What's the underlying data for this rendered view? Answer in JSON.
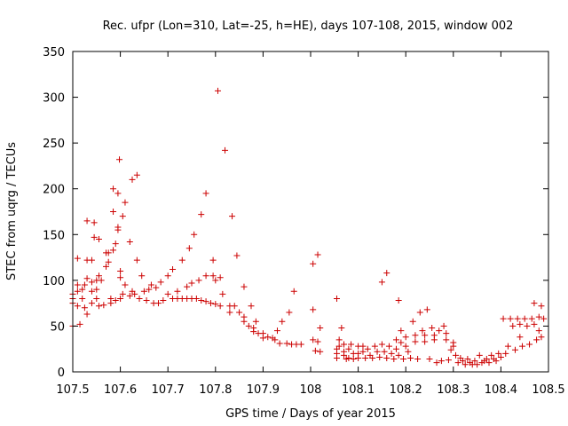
{
  "chart_data": {
    "type": "scatter",
    "title": "Rec. ufpr (Lon=310, Lat=-25, h=HE), days 107-108, 2015, window 002",
    "xlabel": "GPS time / Days of year 2015",
    "ylabel": "STEC from uqrg / TECUs",
    "xlim": [
      107.5,
      108.5
    ],
    "ylim": [
      0,
      350
    ],
    "x_ticks": [
      "107.5",
      "107.6",
      "107.7",
      "107.8",
      "107.9",
      "108",
      "108.1",
      "108.2",
      "108.3",
      "108.4",
      "108.5"
    ],
    "y_ticks": [
      "0",
      "50",
      "100",
      "150",
      "200",
      "250",
      "300",
      "350"
    ],
    "grid": false,
    "legend": "none",
    "marker": "plus",
    "color": "#cc0000",
    "points": [
      [
        107.5,
        75
      ],
      [
        107.5,
        80
      ],
      [
        107.5,
        85
      ],
      [
        107.5,
        50
      ],
      [
        107.51,
        72
      ],
      [
        107.51,
        88
      ],
      [
        107.51,
        95
      ],
      [
        107.51,
        124
      ],
      [
        107.515,
        52
      ],
      [
        107.52,
        80
      ],
      [
        107.52,
        90
      ],
      [
        107.525,
        70
      ],
      [
        107.525,
        95
      ],
      [
        107.53,
        63
      ],
      [
        107.53,
        102
      ],
      [
        107.53,
        122
      ],
      [
        107.53,
        165
      ],
      [
        107.54,
        75
      ],
      [
        107.54,
        88
      ],
      [
        107.54,
        98
      ],
      [
        107.54,
        122
      ],
      [
        107.545,
        147
      ],
      [
        107.545,
        163
      ],
      [
        107.55,
        80
      ],
      [
        107.55,
        90
      ],
      [
        107.55,
        100
      ],
      [
        107.555,
        72
      ],
      [
        107.555,
        105
      ],
      [
        107.555,
        145
      ],
      [
        107.56,
        100
      ],
      [
        107.565,
        73
      ],
      [
        107.57,
        115
      ],
      [
        107.57,
        130
      ],
      [
        107.575,
        120
      ],
      [
        107.575,
        130
      ],
      [
        107.58,
        75
      ],
      [
        107.58,
        80
      ],
      [
        107.585,
        133
      ],
      [
        107.585,
        175
      ],
      [
        107.585,
        200
      ],
      [
        107.59,
        140
      ],
      [
        107.59,
        78
      ],
      [
        107.595,
        195
      ],
      [
        107.595,
        158
      ],
      [
        107.595,
        155
      ],
      [
        107.598,
        232
      ],
      [
        107.6,
        110
      ],
      [
        107.6,
        103
      ],
      [
        107.6,
        80
      ],
      [
        107.605,
        85
      ],
      [
        107.605,
        170
      ],
      [
        107.61,
        185
      ],
      [
        107.61,
        95
      ],
      [
        107.62,
        83
      ],
      [
        107.62,
        142
      ],
      [
        107.625,
        210
      ],
      [
        107.625,
        88
      ],
      [
        107.63,
        85
      ],
      [
        107.635,
        215
      ],
      [
        107.635,
        122
      ],
      [
        107.64,
        80
      ],
      [
        107.645,
        105
      ],
      [
        107.65,
        88
      ],
      [
        107.655,
        78
      ],
      [
        107.66,
        90
      ],
      [
        107.665,
        95
      ],
      [
        107.67,
        75
      ],
      [
        107.675,
        92
      ],
      [
        107.68,
        75
      ],
      [
        107.685,
        98
      ],
      [
        107.69,
        78
      ],
      [
        107.7,
        85
      ],
      [
        107.7,
        105
      ],
      [
        107.71,
        80
      ],
      [
        107.71,
        112
      ],
      [
        107.72,
        88
      ],
      [
        107.72,
        80
      ],
      [
        107.73,
        80
      ],
      [
        107.73,
        122
      ],
      [
        107.74,
        80
      ],
      [
        107.74,
        93
      ],
      [
        107.745,
        135
      ],
      [
        107.75,
        80
      ],
      [
        107.75,
        97
      ],
      [
        107.755,
        150
      ],
      [
        107.76,
        80
      ],
      [
        107.765,
        100
      ],
      [
        107.77,
        78
      ],
      [
        107.77,
        172
      ],
      [
        107.78,
        105
      ],
      [
        107.78,
        77
      ],
      [
        107.78,
        195
      ],
      [
        107.79,
        75
      ],
      [
        107.795,
        122
      ],
      [
        107.795,
        105
      ],
      [
        107.8,
        100
      ],
      [
        107.8,
        74
      ],
      [
        107.805,
        307
      ],
      [
        107.81,
        72
      ],
      [
        107.81,
        103
      ],
      [
        107.815,
        85
      ],
      [
        107.82,
        242
      ],
      [
        107.83,
        72
      ],
      [
        107.83,
        65
      ],
      [
        107.835,
        170
      ],
      [
        107.84,
        72
      ],
      [
        107.845,
        127
      ],
      [
        107.85,
        65
      ],
      [
        107.86,
        60
      ],
      [
        107.86,
        55
      ],
      [
        107.86,
        93
      ],
      [
        107.87,
        50
      ],
      [
        107.875,
        72
      ],
      [
        107.88,
        48
      ],
      [
        107.88,
        44
      ],
      [
        107.885,
        55
      ],
      [
        107.89,
        42
      ],
      [
        107.9,
        42
      ],
      [
        107.9,
        37
      ],
      [
        107.91,
        38
      ],
      [
        107.92,
        37
      ],
      [
        107.925,
        35
      ],
      [
        107.93,
        45
      ],
      [
        107.935,
        31
      ],
      [
        107.94,
        55
      ],
      [
        107.95,
        31
      ],
      [
        107.955,
        65
      ],
      [
        107.96,
        30
      ],
      [
        107.965,
        88
      ],
      [
        107.97,
        30
      ],
      [
        107.98,
        30
      ],
      [
        108.005,
        68
      ],
      [
        108.005,
        35
      ],
      [
        108.005,
        118
      ],
      [
        108.01,
        23
      ],
      [
        108.015,
        33
      ],
      [
        108.015,
        128
      ],
      [
        108.02,
        22
      ],
      [
        108.02,
        48
      ],
      [
        108.055,
        80
      ],
      [
        108.055,
        25
      ],
      [
        108.055,
        20
      ],
      [
        108.055,
        15
      ],
      [
        108.06,
        35
      ],
      [
        108.06,
        28
      ],
      [
        108.065,
        48
      ],
      [
        108.07,
        30
      ],
      [
        108.07,
        22
      ],
      [
        108.07,
        18
      ],
      [
        108.075,
        14
      ],
      [
        108.08,
        25
      ],
      [
        108.08,
        15
      ],
      [
        108.085,
        30
      ],
      [
        108.09,
        20
      ],
      [
        108.09,
        14
      ],
      [
        108.1,
        28
      ],
      [
        108.1,
        20
      ],
      [
        108.1,
        15
      ],
      [
        108.11,
        28
      ],
      [
        108.11,
        22
      ],
      [
        108.115,
        15
      ],
      [
        108.12,
        25
      ],
      [
        108.125,
        18
      ],
      [
        108.13,
        15
      ],
      [
        108.135,
        28
      ],
      [
        108.14,
        22
      ],
      [
        108.145,
        16
      ],
      [
        108.15,
        30
      ],
      [
        108.15,
        98
      ],
      [
        108.155,
        22
      ],
      [
        108.16,
        15
      ],
      [
        108.16,
        108
      ],
      [
        108.165,
        28
      ],
      [
        108.17,
        20
      ],
      [
        108.175,
        14
      ],
      [
        108.18,
        35
      ],
      [
        108.18,
        25
      ],
      [
        108.185,
        78
      ],
      [
        108.185,
        18
      ],
      [
        108.19,
        32
      ],
      [
        108.19,
        45
      ],
      [
        108.195,
        14
      ],
      [
        108.2,
        38
      ],
      [
        108.2,
        28
      ],
      [
        108.205,
        22
      ],
      [
        108.21,
        15
      ],
      [
        108.215,
        55
      ],
      [
        108.22,
        40
      ],
      [
        108.22,
        33
      ],
      [
        108.225,
        14
      ],
      [
        108.23,
        65
      ],
      [
        108.235,
        45
      ],
      [
        108.24,
        40
      ],
      [
        108.24,
        33
      ],
      [
        108.245,
        68
      ],
      [
        108.25,
        14
      ],
      [
        108.255,
        48
      ],
      [
        108.26,
        40
      ],
      [
        108.26,
        35
      ],
      [
        108.265,
        10
      ],
      [
        108.27,
        45
      ],
      [
        108.275,
        12
      ],
      [
        108.28,
        50
      ],
      [
        108.285,
        42
      ],
      [
        108.285,
        35
      ],
      [
        108.29,
        13
      ],
      [
        108.295,
        24
      ],
      [
        108.3,
        32
      ],
      [
        108.3,
        28
      ],
      [
        108.305,
        18
      ],
      [
        108.31,
        10
      ],
      [
        108.315,
        15
      ],
      [
        108.32,
        12
      ],
      [
        108.325,
        8
      ],
      [
        108.33,
        14
      ],
      [
        108.335,
        10
      ],
      [
        108.34,
        8
      ],
      [
        108.345,
        12
      ],
      [
        108.35,
        8
      ],
      [
        108.355,
        18
      ],
      [
        108.36,
        10
      ],
      [
        108.365,
        12
      ],
      [
        108.37,
        14
      ],
      [
        108.375,
        10
      ],
      [
        108.38,
        18
      ],
      [
        108.385,
        14
      ],
      [
        108.39,
        12
      ],
      [
        108.395,
        20
      ],
      [
        108.4,
        16
      ],
      [
        108.405,
        58
      ],
      [
        108.41,
        20
      ],
      [
        108.415,
        28
      ],
      [
        108.42,
        58
      ],
      [
        108.425,
        50
      ],
      [
        108.43,
        24
      ],
      [
        108.435,
        58
      ],
      [
        108.44,
        52
      ],
      [
        108.44,
        38
      ],
      [
        108.445,
        28
      ],
      [
        108.45,
        58
      ],
      [
        108.455,
        50
      ],
      [
        108.46,
        30
      ],
      [
        108.465,
        58
      ],
      [
        108.47,
        52
      ],
      [
        108.47,
        75
      ],
      [
        108.475,
        35
      ],
      [
        108.48,
        60
      ],
      [
        108.48,
        45
      ],
      [
        108.485,
        38
      ],
      [
        108.485,
        72
      ],
      [
        108.49,
        58
      ]
    ]
  }
}
